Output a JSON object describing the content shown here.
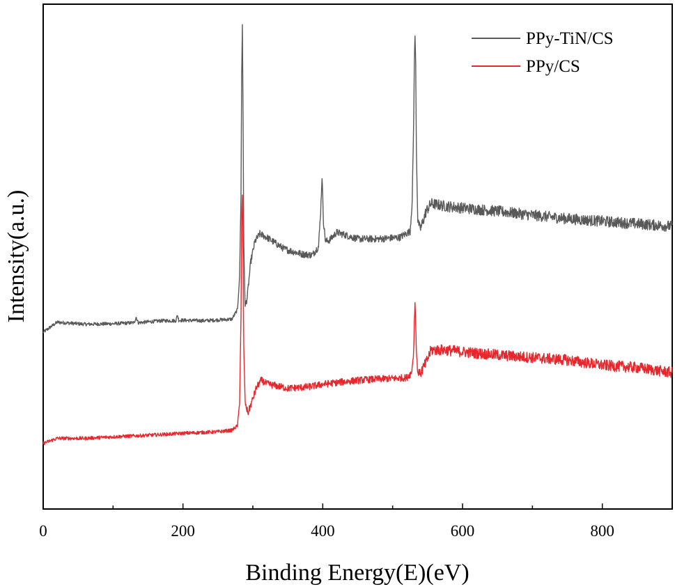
{
  "chart_data": {
    "type": "line",
    "title": "",
    "xlabel": "Binding Energy(E)(eV)",
    "ylabel": "Intensity(a.u.)",
    "xlim": [
      0,
      900
    ],
    "ylim": [
      0,
      100
    ],
    "xticks": [
      0,
      200,
      400,
      600,
      800
    ],
    "yticks_shown": false,
    "grid": false,
    "legend_position": "top-right",
    "series": [
      {
        "name": "PPy-TiN/CS",
        "color": "#595959",
        "x": [
          0,
          20,
          60,
          100,
          130,
          133,
          136,
          170,
          190,
          192,
          194,
          230,
          270,
          278,
          281,
          283,
          284,
          285,
          286,
          287,
          289,
          292,
          297,
          303,
          310,
          320,
          345,
          370,
          385,
          394,
          397,
          399,
          401,
          404,
          410,
          420,
          450,
          480,
          510,
          525,
          528,
          530,
          531,
          532,
          533,
          534,
          536,
          540,
          548,
          555,
          575,
          610,
          650,
          700,
          750,
          800,
          850,
          900
        ],
        "y": [
          35,
          37,
          36.6,
          36.7,
          36.9,
          38,
          36.9,
          37.3,
          37.3,
          38.5,
          37.4,
          37.3,
          37.6,
          39.5,
          46,
          62,
          86,
          96,
          78,
          52,
          40,
          42,
          49,
          53,
          54.5,
          53.8,
          51.5,
          50.5,
          50.3,
          52,
          59,
          66,
          57,
          53,
          53.3,
          54.8,
          53.5,
          53.5,
          53.8,
          55,
          61,
          76,
          88,
          94,
          88,
          71,
          57,
          55.5,
          59,
          60.5,
          60,
          59.5,
          59,
          58.2,
          57.5,
          57,
          56.5,
          56
        ]
      },
      {
        "name": "PPy/CS",
        "color": "#e8272d",
        "x": [
          0,
          20,
          60,
          100,
          150,
          200,
          250,
          270,
          278,
          281,
          283,
          284,
          285,
          286,
          287,
          289,
          293,
          298,
          305,
          312,
          320,
          350,
          380,
          400,
          430,
          460,
          490,
          520,
          527,
          530,
          531,
          532,
          533,
          534,
          536,
          540,
          548,
          555,
          575,
          610,
          650,
          700,
          750,
          800,
          850,
          900
        ],
        "y": [
          13,
          14,
          14,
          14.3,
          14.6,
          15,
          15.3,
          15.6,
          16.5,
          21,
          38,
          58,
          62,
          50,
          32,
          21,
          19,
          21,
          24,
          25.5,
          24.8,
          23.9,
          24.2,
          24.7,
          25.2,
          25.6,
          25.8,
          26,
          27,
          31,
          37,
          41,
          37,
          31,
          27,
          27,
          29,
          31.5,
          31.5,
          31,
          30.5,
          30,
          29.5,
          28.5,
          28,
          27
        ]
      }
    ]
  }
}
